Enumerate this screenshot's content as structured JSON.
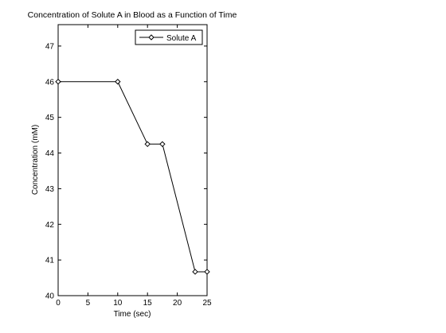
{
  "chart_data": {
    "type": "line",
    "title": "Concentration of Solute A in Blood as a Function of Time",
    "xlabel": "Time (sec)",
    "ylabel": "Concentration (mM)",
    "xlim": [
      0,
      25
    ],
    "ylim": [
      40,
      47.6
    ],
    "xticks": [
      0,
      5,
      10,
      15,
      20,
      25
    ],
    "yticks": [
      40,
      41,
      42,
      43,
      44,
      45,
      46,
      47
    ],
    "grid": false,
    "legend_position": "top-right",
    "series": [
      {
        "name": "Solute A",
        "color": "#000000",
        "marker": "diamond",
        "x": [
          0,
          10,
          15,
          17.5,
          23,
          25
        ],
        "y": [
          46,
          46,
          44.25,
          44.25,
          40.67,
          40.67
        ]
      }
    ]
  }
}
